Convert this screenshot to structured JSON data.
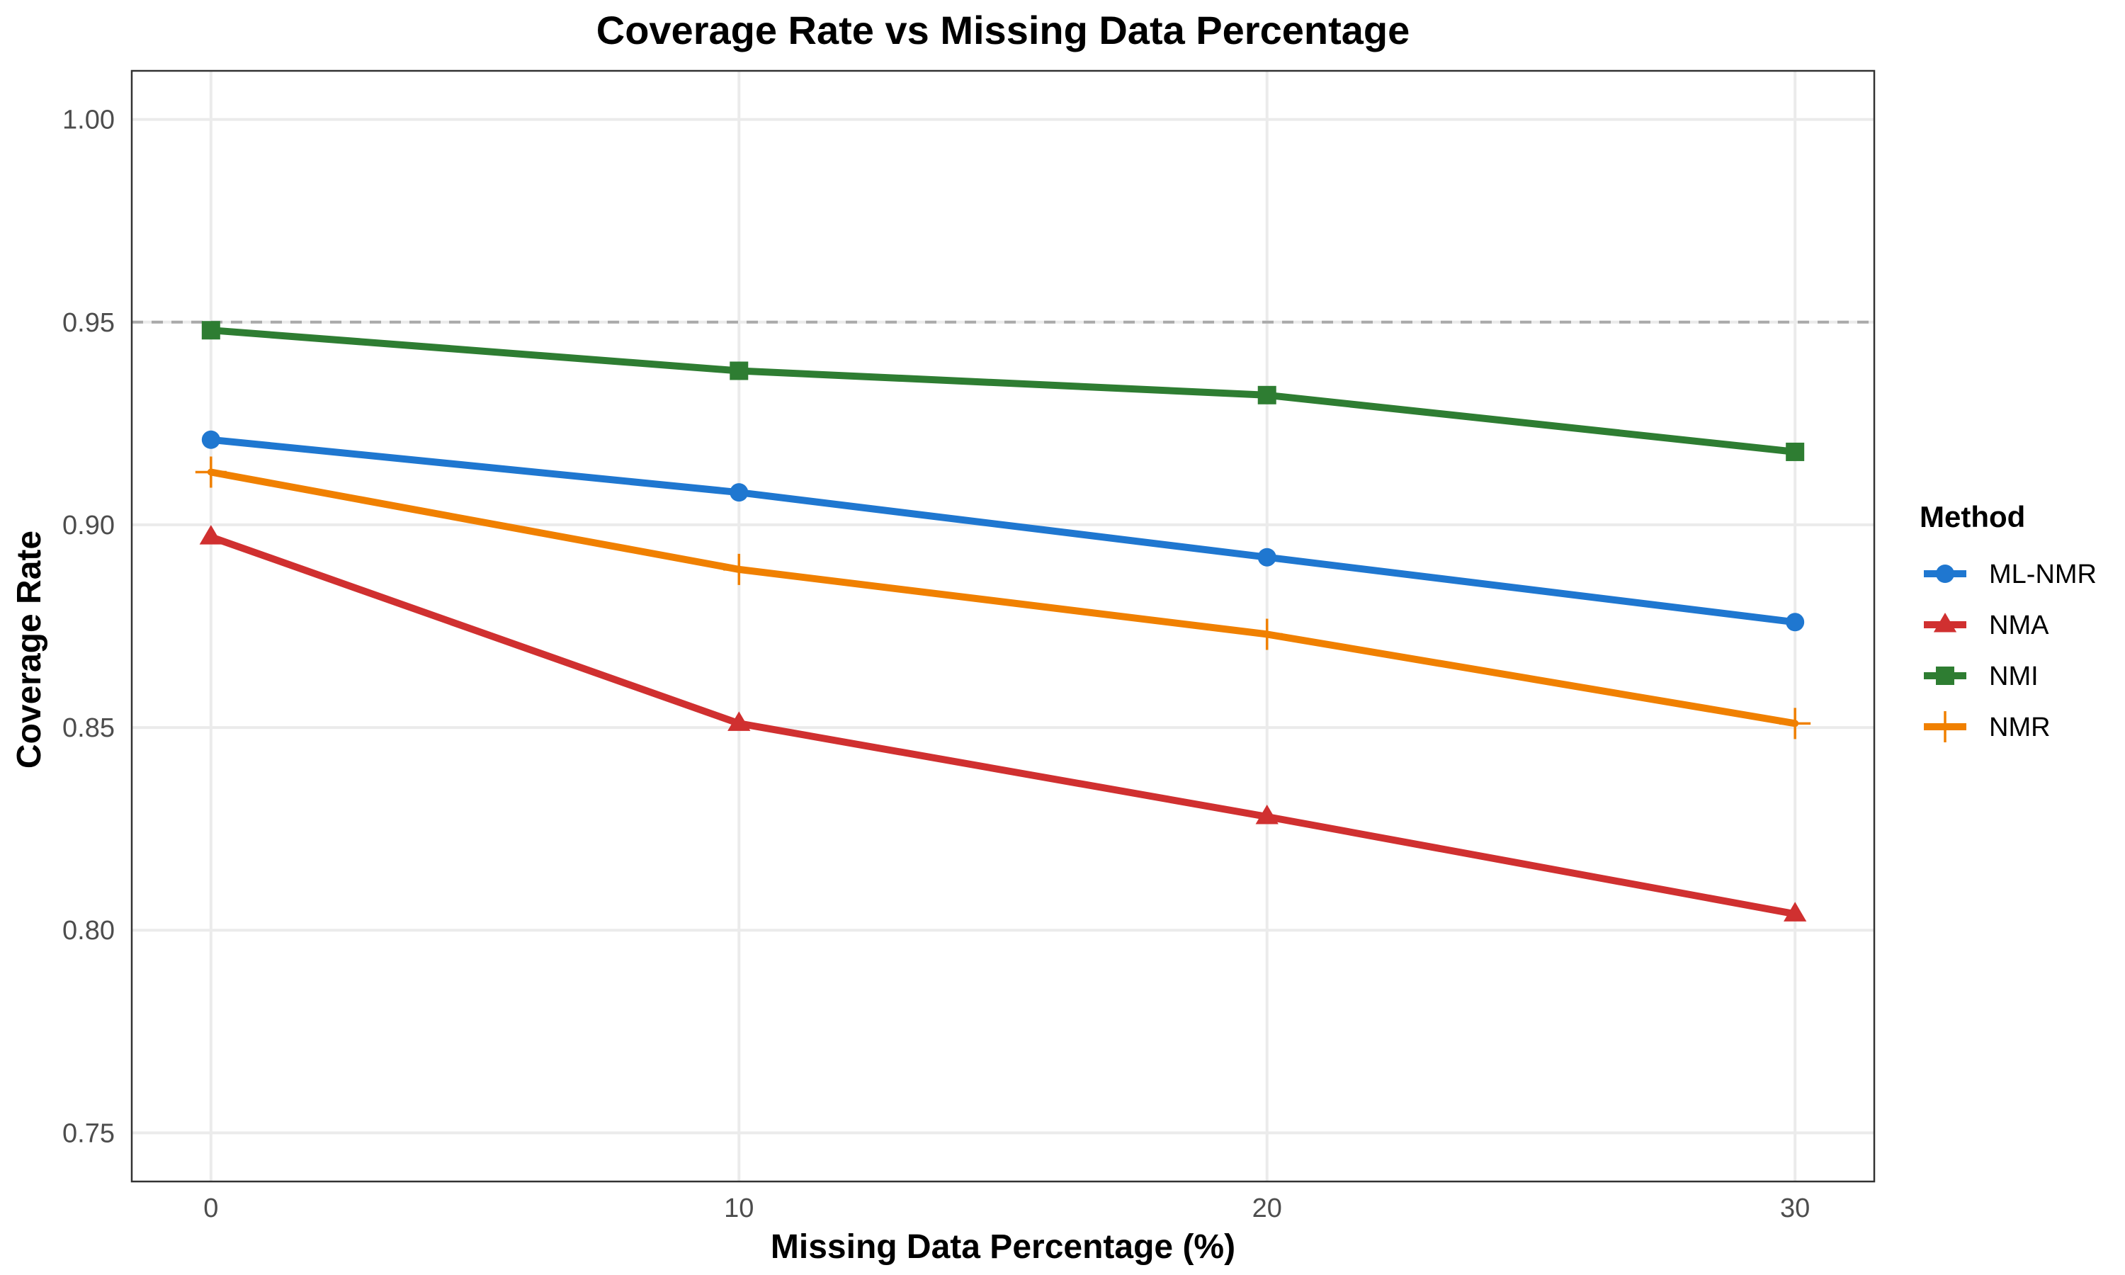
{
  "chart_data": {
    "type": "line",
    "title": "Coverage Rate vs Missing Data Percentage",
    "xlabel": "Missing Data Percentage (%)",
    "ylabel": "Coverage Rate",
    "x": [
      0,
      10,
      20,
      30
    ],
    "xticks": [
      "0",
      "10",
      "20",
      "30"
    ],
    "yticks": [
      "0.75",
      "0.80",
      "0.85",
      "0.90",
      "0.95",
      "1.00"
    ],
    "xlim": [
      -1.5,
      31.5
    ],
    "ylim": [
      0.738,
      1.012
    ],
    "grid": true,
    "reference_line": {
      "y": 0.95,
      "style": "dashed",
      "color": "#aaaaaa"
    },
    "legend": {
      "title": "Method",
      "position": "right"
    },
    "series": [
      {
        "name": "ML-NMR",
        "values": [
          0.921,
          0.908,
          0.892,
          0.876
        ],
        "color": "#1f77d0",
        "marker": "circle"
      },
      {
        "name": "NMA",
        "values": [
          0.897,
          0.851,
          0.828,
          0.804
        ],
        "color": "#d03030",
        "marker": "triangle"
      },
      {
        "name": "NMI",
        "values": [
          0.948,
          0.938,
          0.932,
          0.918
        ],
        "color": "#2e7d32",
        "marker": "square"
      },
      {
        "name": "NMR",
        "values": [
          0.913,
          0.889,
          0.873,
          0.851
        ],
        "color": "#f08000",
        "marker": "plus"
      }
    ]
  }
}
